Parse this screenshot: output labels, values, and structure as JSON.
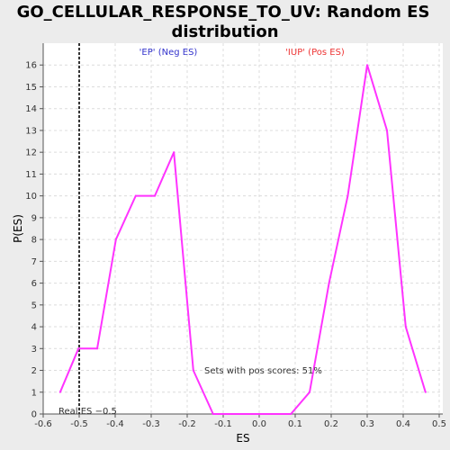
{
  "chart_data": {
    "type": "line",
    "title_line1": "GO_CELLULAR_RESPONSE_TO_UV: Random ES",
    "title_line2": "distribution",
    "xlabel": "ES",
    "ylabel": "P(ES)",
    "xlim": [
      -0.6,
      0.51
    ],
    "ylim": [
      0,
      17
    ],
    "x_ticks": [
      -0.6,
      -0.5,
      -0.4,
      -0.3,
      -0.2,
      -0.1,
      0.0,
      0.1,
      0.2,
      0.3,
      0.4,
      0.5
    ],
    "x_tick_labels": [
      "-0.6",
      "-0.5",
      "-0.4",
      "-0.3",
      "-0.2",
      "-0.1",
      "0.0",
      "0.1",
      "0.2",
      "0.3",
      "0.4",
      "0.5"
    ],
    "y_ticks": [
      0,
      1,
      2,
      3,
      4,
      5,
      6,
      7,
      8,
      9,
      10,
      11,
      12,
      13,
      14,
      15,
      16
    ],
    "y_tick_labels": [
      "0",
      "1",
      "2",
      "3",
      "4",
      "5",
      "6",
      "7",
      "8",
      "9",
      "10",
      "11",
      "12",
      "13",
      "14",
      "15",
      "16"
    ],
    "grid": true,
    "series": [
      {
        "color": "#ff33ff",
        "x": [
          -0.553,
          -0.502,
          -0.45,
          -0.398,
          -0.343,
          -0.29,
          -0.237,
          -0.183,
          -0.128,
          -0.075,
          -0.02,
          0.034,
          0.088,
          0.14,
          0.194,
          0.246,
          0.3,
          0.355,
          0.407,
          0.462
        ],
        "y": [
          1,
          3,
          3,
          8,
          10,
          10,
          12,
          2,
          0,
          0,
          0,
          0,
          0,
          1,
          6,
          10,
          16,
          13,
          4,
          1
        ]
      }
    ],
    "real_es": -0.5,
    "real_es_label": "Real ES −0.5",
    "neg_label": "'EP' (Neg ES)",
    "neg_color": "#3333cc",
    "pos_label": "'IUP' (Pos ES)",
    "pos_color": "#ee3333",
    "pos_scores_text": "Sets with pos scores: 51%"
  }
}
